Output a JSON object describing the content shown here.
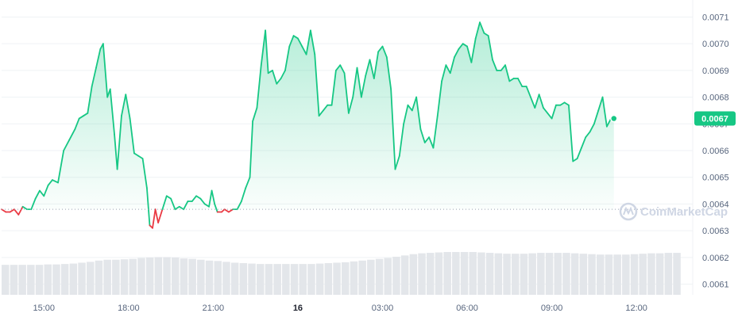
{
  "chart_data": {
    "type": "line",
    "title": "",
    "xlabel": "",
    "ylabel": "",
    "baseline": 0.00638,
    "current_price_label": "0.0067",
    "current_price": 0.00672,
    "watermark": "CoinMarketCap",
    "colors": {
      "up": "#16c784",
      "down": "#ea3943",
      "badge": "#16c784",
      "volume": "#e3e6ea",
      "grid": "#eff2f5"
    },
    "ylim": [
      0.00606,
      0.00714
    ],
    "y_ticks": [
      0.0061,
      0.0062,
      0.0063,
      0.0064,
      0.0065,
      0.0066,
      0.0067,
      0.0068,
      0.0069,
      0.007,
      0.0071
    ],
    "y_tick_labels": [
      "0.0061",
      "0.0062",
      "0.0063",
      "0.0064",
      "0.0065",
      "0.0066",
      "0.0067",
      "0.0068",
      "0.0069",
      "0.0070",
      "0.0071"
    ],
    "xlim": [
      0,
      24.1
    ],
    "x_ticks": [
      {
        "x": 1.5,
        "label": "15:00",
        "bold": false
      },
      {
        "x": 4.5,
        "label": "18:00",
        "bold": false
      },
      {
        "x": 7.5,
        "label": "21:00",
        "bold": false
      },
      {
        "x": 10.5,
        "label": "16",
        "bold": true
      },
      {
        "x": 13.5,
        "label": "03:00",
        "bold": false
      },
      {
        "x": 16.5,
        "label": "06:00",
        "bold": false
      },
      {
        "x": 19.5,
        "label": "09:00",
        "bold": false
      },
      {
        "x": 22.5,
        "label": "12:00",
        "bold": false
      }
    ],
    "series": [
      {
        "values": [
          [
            0.0,
            0.00638
          ],
          [
            0.15,
            0.00637
          ],
          [
            0.3,
            0.00637
          ],
          [
            0.45,
            0.00638
          ],
          [
            0.6,
            0.00636
          ],
          [
            0.75,
            0.00639
          ],
          [
            0.9,
            0.00638
          ],
          [
            1.05,
            0.00638
          ],
          [
            1.2,
            0.00642
          ],
          [
            1.35,
            0.00645
          ],
          [
            1.5,
            0.00643
          ],
          [
            1.65,
            0.00647
          ],
          [
            1.8,
            0.00649
          ],
          [
            2.0,
            0.00648
          ],
          [
            2.2,
            0.0066
          ],
          [
            2.4,
            0.00664
          ],
          [
            2.6,
            0.00668
          ],
          [
            2.75,
            0.00672
          ],
          [
            2.9,
            0.00673
          ],
          [
            3.05,
            0.00674
          ],
          [
            3.2,
            0.00684
          ],
          [
            3.35,
            0.00691
          ],
          [
            3.5,
            0.00698
          ],
          [
            3.6,
            0.007
          ],
          [
            3.75,
            0.0068
          ],
          [
            3.85,
            0.00683
          ],
          [
            4.0,
            0.00666
          ],
          [
            4.1,
            0.00653
          ],
          [
            4.25,
            0.00673
          ],
          [
            4.4,
            0.00681
          ],
          [
            4.55,
            0.00672
          ],
          [
            4.7,
            0.00659
          ],
          [
            4.85,
            0.00658
          ],
          [
            5.0,
            0.00657
          ],
          [
            5.15,
            0.00646
          ],
          [
            5.25,
            0.00632
          ],
          [
            5.35,
            0.00631
          ],
          [
            5.45,
            0.00638
          ],
          [
            5.55,
            0.00633
          ],
          [
            5.7,
            0.00638
          ],
          [
            5.85,
            0.00643
          ],
          [
            6.0,
            0.00642
          ],
          [
            6.15,
            0.00638
          ],
          [
            6.3,
            0.00639
          ],
          [
            6.45,
            0.00638
          ],
          [
            6.6,
            0.00641
          ],
          [
            6.75,
            0.00641
          ],
          [
            6.9,
            0.00643
          ],
          [
            7.05,
            0.00642
          ],
          [
            7.2,
            0.0064
          ],
          [
            7.35,
            0.00639
          ],
          [
            7.45,
            0.00645
          ],
          [
            7.55,
            0.0064
          ],
          [
            7.65,
            0.00637
          ],
          [
            7.8,
            0.00637
          ],
          [
            7.9,
            0.00638
          ],
          [
            8.05,
            0.00637
          ],
          [
            8.2,
            0.00638
          ],
          [
            8.35,
            0.00638
          ],
          [
            8.5,
            0.00641
          ],
          [
            8.65,
            0.00646
          ],
          [
            8.8,
            0.0065
          ],
          [
            8.9,
            0.00671
          ],
          [
            9.05,
            0.00676
          ],
          [
            9.2,
            0.00692
          ],
          [
            9.35,
            0.00705
          ],
          [
            9.45,
            0.00689
          ],
          [
            9.6,
            0.0069
          ],
          [
            9.75,
            0.00685
          ],
          [
            9.9,
            0.00687
          ],
          [
            10.05,
            0.0069
          ],
          [
            10.2,
            0.00699
          ],
          [
            10.35,
            0.00703
          ],
          [
            10.5,
            0.00702
          ],
          [
            10.65,
            0.00699
          ],
          [
            10.8,
            0.00696
          ],
          [
            10.95,
            0.00705
          ],
          [
            11.1,
            0.00696
          ],
          [
            11.25,
            0.00673
          ],
          [
            11.4,
            0.00675
          ],
          [
            11.55,
            0.00677
          ],
          [
            11.7,
            0.00677
          ],
          [
            11.85,
            0.0069
          ],
          [
            12.0,
            0.00692
          ],
          [
            12.15,
            0.00689
          ],
          [
            12.3,
            0.00674
          ],
          [
            12.45,
            0.0068
          ],
          [
            12.6,
            0.00691
          ],
          [
            12.75,
            0.0068
          ],
          [
            12.9,
            0.00688
          ],
          [
            13.05,
            0.00694
          ],
          [
            13.2,
            0.00687
          ],
          [
            13.35,
            0.00697
          ],
          [
            13.5,
            0.00699
          ],
          [
            13.65,
            0.00695
          ],
          [
            13.8,
            0.00683
          ],
          [
            13.95,
            0.00653
          ],
          [
            14.1,
            0.00658
          ],
          [
            14.25,
            0.0067
          ],
          [
            14.4,
            0.00677
          ],
          [
            14.55,
            0.00675
          ],
          [
            14.7,
            0.0068
          ],
          [
            14.85,
            0.00668
          ],
          [
            15.0,
            0.00663
          ],
          [
            15.15,
            0.00665
          ],
          [
            15.3,
            0.00661
          ],
          [
            15.45,
            0.00673
          ],
          [
            15.6,
            0.00686
          ],
          [
            15.75,
            0.00692
          ],
          [
            15.9,
            0.00689
          ],
          [
            16.05,
            0.00695
          ],
          [
            16.2,
            0.00698
          ],
          [
            16.35,
            0.007
          ],
          [
            16.5,
            0.00699
          ],
          [
            16.65,
            0.00693
          ],
          [
            16.8,
            0.00702
          ],
          [
            16.95,
            0.00708
          ],
          [
            17.1,
            0.00704
          ],
          [
            17.25,
            0.00703
          ],
          [
            17.4,
            0.00694
          ],
          [
            17.55,
            0.0069
          ],
          [
            17.7,
            0.0069
          ],
          [
            17.85,
            0.00692
          ],
          [
            18.0,
            0.00686
          ],
          [
            18.15,
            0.00687
          ],
          [
            18.3,
            0.00687
          ],
          [
            18.45,
            0.00684
          ],
          [
            18.6,
            0.00684
          ],
          [
            18.75,
            0.0068
          ],
          [
            18.9,
            0.00676
          ],
          [
            19.05,
            0.00681
          ],
          [
            19.2,
            0.00676
          ],
          [
            19.35,
            0.00674
          ],
          [
            19.5,
            0.00672
          ],
          [
            19.65,
            0.00677
          ],
          [
            19.8,
            0.00677
          ],
          [
            19.95,
            0.00678
          ],
          [
            20.1,
            0.00677
          ],
          [
            20.25,
            0.00656
          ],
          [
            20.4,
            0.00657
          ],
          [
            20.55,
            0.00661
          ],
          [
            20.7,
            0.00665
          ],
          [
            20.85,
            0.00667
          ],
          [
            21.0,
            0.0067
          ],
          [
            21.15,
            0.00675
          ],
          [
            21.3,
            0.0068
          ],
          [
            21.45,
            0.00669
          ],
          [
            21.6,
            0.00672
          ],
          [
            21.7,
            0.00672
          ]
        ]
      }
    ],
    "volume": {
      "description_levels": "relative bar heights 0-1",
      "values": [
        0.7,
        0.7,
        0.7,
        0.7,
        0.7,
        0.71,
        0.71,
        0.72,
        0.73,
        0.75,
        0.77,
        0.8,
        0.82,
        0.82,
        0.83,
        0.84,
        0.86,
        0.87,
        0.88,
        0.88,
        0.87,
        0.85,
        0.84,
        0.82,
        0.8,
        0.79,
        0.77,
        0.75,
        0.74,
        0.73,
        0.72,
        0.72,
        0.72,
        0.72,
        0.72,
        0.72,
        0.72,
        0.73,
        0.74,
        0.75,
        0.76,
        0.78,
        0.8,
        0.82,
        0.84,
        0.86,
        0.89,
        0.92,
        0.95,
        0.97,
        0.98,
        0.99,
        1.0,
        1.0,
        1.0,
        1.0,
        0.99,
        0.98,
        0.97,
        0.96,
        0.96,
        0.96,
        0.97,
        0.98,
        0.98,
        0.98,
        0.98,
        0.97,
        0.96,
        0.95,
        0.94,
        0.94,
        0.94,
        0.94,
        0.95,
        0.96,
        0.97,
        0.97,
        0.98,
        0.98
      ]
    }
  }
}
